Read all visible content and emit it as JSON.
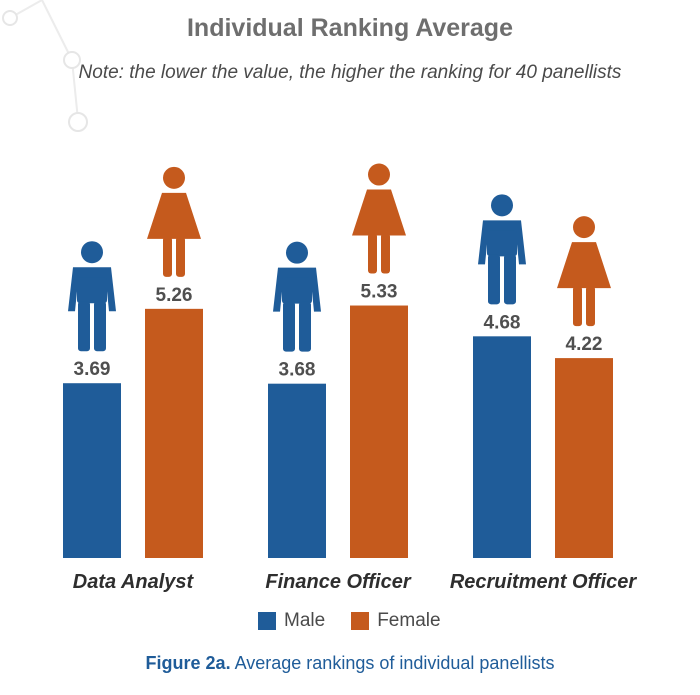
{
  "chart_data": {
    "type": "bar",
    "title": "Individual Ranking Average",
    "subtitle": "Note: the lower the value, the higher the ranking for 40 panellists",
    "categories": [
      "Data Analyst",
      "Finance Officer",
      "Recruitment Officer"
    ],
    "series": [
      {
        "name": "Male",
        "color": "#1f5c99",
        "icon": "male-person-icon",
        "values": [
          3.69,
          3.68,
          4.68
        ]
      },
      {
        "name": "Female",
        "color": "#c55a1d",
        "icon": "female-person-icon",
        "values": [
          5.26,
          5.33,
          4.22
        ]
      }
    ],
    "ylim": [
      0,
      9.5
    ],
    "grid": false,
    "legend": "bottom-center"
  },
  "legend": {
    "male": "Male",
    "female": "Female"
  },
  "caption": {
    "label": "Figure 2a.",
    "text": " Average rankings of individual panellists"
  }
}
